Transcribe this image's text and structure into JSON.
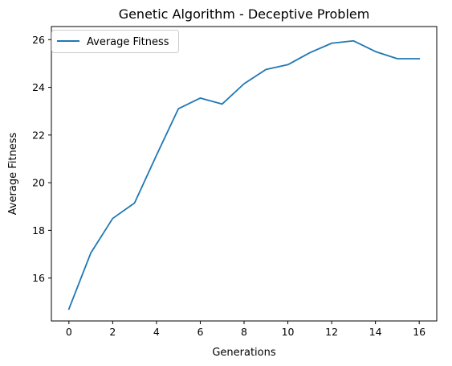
{
  "chart_data": {
    "type": "line",
    "title": "Genetic Algorithm - Deceptive Problem",
    "xlabel": "Generations",
    "ylabel": "Average Fitness",
    "xlim": [
      -0.8,
      16.8
    ],
    "ylim": [
      14.2,
      26.55
    ],
    "xticks": [
      0,
      2,
      4,
      6,
      8,
      10,
      12,
      14,
      16
    ],
    "yticks": [
      16,
      18,
      20,
      22,
      24,
      26
    ],
    "grid": false,
    "legend": "top-left",
    "series": [
      {
        "name": "Average Fitness",
        "color": "#1f77b4",
        "x": [
          0,
          1,
          2,
          3,
          4,
          5,
          6,
          7,
          8,
          9,
          10,
          11,
          12,
          13,
          14,
          15,
          16
        ],
        "y": [
          14.7,
          17.05,
          18.5,
          19.15,
          21.15,
          23.1,
          23.55,
          23.3,
          24.15,
          24.75,
          24.95,
          25.45,
          25.85,
          25.95,
          25.5,
          25.2,
          25.2
        ]
      }
    ]
  }
}
